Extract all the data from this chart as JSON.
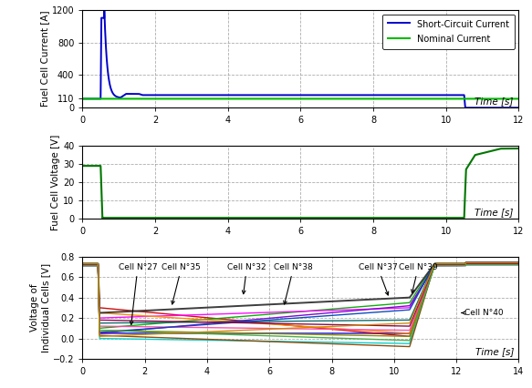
{
  "plot1": {
    "ylabel": "Fuel Cell Current [A]",
    "xlabel": "Time [s]",
    "xlim": [
      0,
      12
    ],
    "ylim": [
      0,
      1200
    ],
    "yticks": [
      0,
      110,
      400,
      800,
      1200
    ],
    "xticks": [
      0,
      2,
      4,
      6,
      8,
      10,
      12
    ],
    "legend": [
      "Short-Circuit Current",
      "Nominal Current"
    ],
    "sc_color": "#0000cc",
    "nom_color": "#00bb00"
  },
  "plot2": {
    "ylabel": "Fuel Cell Voltage [V]",
    "xlabel": "Time [s]",
    "xlim": [
      0,
      12
    ],
    "ylim": [
      0,
      40
    ],
    "yticks": [
      0,
      10,
      20,
      30,
      40
    ],
    "xticks": [
      0,
      2,
      4,
      6,
      8,
      10,
      12
    ],
    "line_color": "#007700"
  },
  "plot3": {
    "ylabel": "Voltage of\nIndividual Cells [V]",
    "xlabel": "Time [s]",
    "xlim": [
      0,
      14
    ],
    "ylim": [
      -0.2,
      0.8
    ],
    "yticks": [
      -0.2,
      0.0,
      0.2,
      0.4,
      0.6,
      0.8
    ],
    "xticks": [
      0,
      2,
      4,
      6,
      8,
      10,
      12,
      14
    ]
  },
  "cell_colors": [
    "#0000cc",
    "#cc0000",
    "#00aa00",
    "#ff00ff",
    "#00aaaa",
    "#ff8800",
    "#7700cc",
    "#888800",
    "#006666",
    "#884400",
    "#ff44aa",
    "#0044bb",
    "#880044",
    "#44aa44",
    "#cc8800",
    "#333333"
  ],
  "fig_width": 5.83,
  "fig_height": 4.26,
  "dpi": 100
}
